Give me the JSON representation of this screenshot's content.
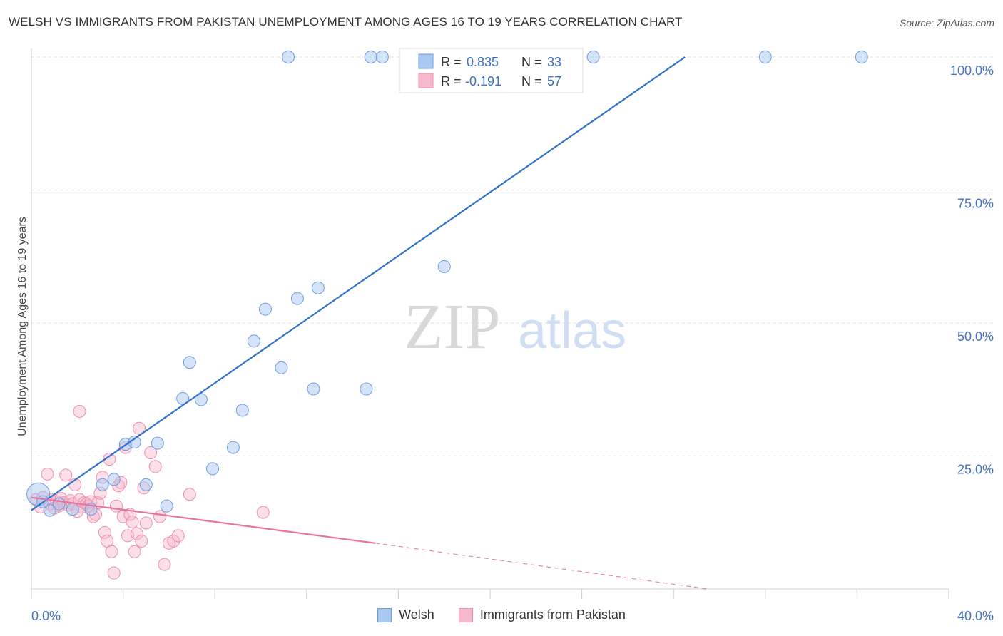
{
  "title": "WELSH VS IMMIGRANTS FROM PAKISTAN UNEMPLOYMENT AMONG AGES 16 TO 19 YEARS CORRELATION CHART",
  "source": "Source: ZipAtlas.com",
  "watermark": {
    "zip": "ZIP",
    "atlas": "atlas"
  },
  "colors": {
    "welsh_fill": "#a9c8f0",
    "welsh_stroke": "#6d9de0",
    "welsh_line": "#2f73cc",
    "pak_fill": "#f6b9cc",
    "pak_stroke": "#ec8fae",
    "pak_line": "#e8739b",
    "tick_text": "#4472c4",
    "grid": "#dddddd"
  },
  "stats": [
    {
      "r_label": "R =",
      "r_value": "0.835",
      "n_label": "N =",
      "n_value": "33"
    },
    {
      "r_label": "R =",
      "r_value": "-0.191",
      "n_label": "N =",
      "n_value": "57"
    }
  ],
  "chart_data": {
    "type": "scatter",
    "title": "WELSH VS IMMIGRANTS FROM PAKISTAN UNEMPLOYMENT AMONG AGES 16 TO 19 YEARS CORRELATION CHART",
    "xlabel": "",
    "ylabel": "Unemployment Among Ages 16 to 19 years",
    "xlim": [
      0,
      40
    ],
    "ylim": [
      0,
      100
    ],
    "x_tick_labels": [
      "0.0%",
      "40.0%"
    ],
    "y_tick_labels": [
      "100.0%",
      "75.0%",
      "50.0%",
      "25.0%"
    ],
    "y_tick_values": [
      100,
      75,
      50,
      25
    ],
    "grid": true,
    "legend_position": "bottom",
    "series": [
      {
        "name": "Welsh",
        "trend": {
          "x0": 0,
          "y0": 14.8,
          "x1": 28.5,
          "y1": 100
        },
        "points": [
          [
            0.3,
            17.8
          ],
          [
            0.8,
            14.8
          ],
          [
            1.8,
            15.0
          ],
          [
            2.6,
            15.0
          ],
          [
            3.1,
            19.6
          ],
          [
            3.6,
            20.6
          ],
          [
            4.1,
            27.2
          ],
          [
            4.5,
            27.6
          ],
          [
            5.0,
            19.6
          ],
          [
            5.5,
            27.4
          ],
          [
            5.9,
            15.6
          ],
          [
            6.6,
            35.8
          ],
          [
            6.9,
            42.6
          ],
          [
            7.4,
            35.6
          ],
          [
            7.9,
            22.6
          ],
          [
            8.8,
            26.6
          ],
          [
            9.2,
            33.6
          ],
          [
            9.7,
            46.6
          ],
          [
            10.2,
            52.6
          ],
          [
            10.9,
            41.6
          ],
          [
            11.2,
            100
          ],
          [
            11.6,
            54.6
          ],
          [
            12.3,
            37.6
          ],
          [
            12.5,
            56.6
          ],
          [
            14.6,
            37.6
          ],
          [
            14.8,
            100
          ],
          [
            15.3,
            100
          ],
          [
            18.0,
            60.6
          ],
          [
            24.5,
            100
          ],
          [
            32.0,
            100
          ],
          [
            36.2,
            100
          ],
          [
            1.2,
            16.0
          ],
          [
            0.5,
            16.4
          ]
        ]
      },
      {
        "name": "Immigrants from Pakistan",
        "trend": {
          "x0": 0,
          "y0": 17.2,
          "x1": 15.0,
          "y1": 8.6,
          "dash_x1": 29.5,
          "dash_y1": 0
        },
        "points": [
          [
            0.2,
            16.8
          ],
          [
            0.4,
            15.4
          ],
          [
            0.5,
            17.2
          ],
          [
            0.7,
            21.6
          ],
          [
            0.8,
            16.0
          ],
          [
            0.9,
            16.8
          ],
          [
            1.0,
            15.2
          ],
          [
            1.1,
            16.4
          ],
          [
            1.2,
            15.6
          ],
          [
            1.3,
            17.0
          ],
          [
            1.4,
            16.2
          ],
          [
            1.5,
            21.4
          ],
          [
            1.6,
            15.8
          ],
          [
            1.7,
            16.6
          ],
          [
            1.8,
            16.0
          ],
          [
            1.9,
            19.6
          ],
          [
            2.0,
            14.6
          ],
          [
            2.1,
            16.8
          ],
          [
            2.2,
            15.4
          ],
          [
            2.3,
            16.2
          ],
          [
            2.4,
            16.0
          ],
          [
            2.5,
            15.6
          ],
          [
            2.6,
            16.4
          ],
          [
            2.7,
            13.6
          ],
          [
            2.8,
            14.0
          ],
          [
            2.9,
            16.2
          ],
          [
            3.0,
            18.0
          ],
          [
            3.1,
            21.0
          ],
          [
            3.2,
            10.6
          ],
          [
            3.3,
            9.0
          ],
          [
            3.4,
            24.4
          ],
          [
            3.5,
            7.0
          ],
          [
            3.6,
            3.0
          ],
          [
            3.7,
            15.6
          ],
          [
            3.8,
            19.4
          ],
          [
            3.9,
            20.0
          ],
          [
            4.0,
            13.6
          ],
          [
            4.1,
            26.6
          ],
          [
            4.2,
            10.0
          ],
          [
            4.3,
            14.0
          ],
          [
            4.4,
            12.6
          ],
          [
            4.5,
            7.0
          ],
          [
            4.6,
            10.4
          ],
          [
            4.7,
            30.2
          ],
          [
            4.8,
            9.0
          ],
          [
            4.9,
            19.0
          ],
          [
            5.0,
            12.4
          ],
          [
            5.2,
            25.6
          ],
          [
            5.4,
            23.0
          ],
          [
            5.6,
            13.6
          ],
          [
            5.8,
            4.6
          ],
          [
            6.0,
            8.6
          ],
          [
            6.2,
            9.0
          ],
          [
            6.4,
            10.0
          ],
          [
            6.9,
            17.8
          ],
          [
            10.1,
            14.4
          ],
          [
            2.1,
            33.4
          ]
        ]
      }
    ]
  },
  "legend": [
    {
      "label": "Welsh"
    },
    {
      "label": "Immigrants from Pakistan"
    }
  ]
}
